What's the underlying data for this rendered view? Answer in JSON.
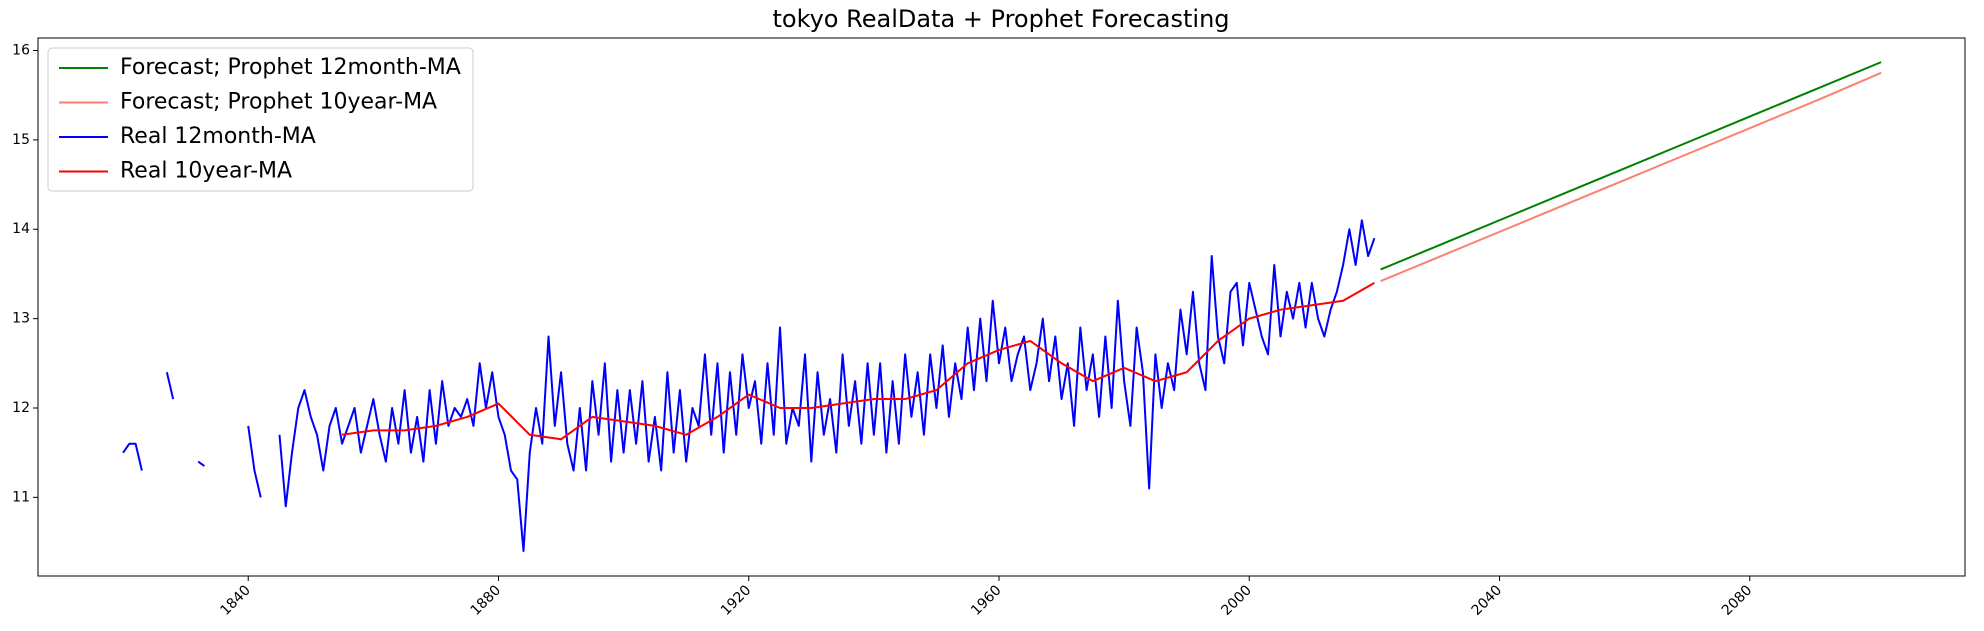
{
  "chart_data": {
    "type": "line",
    "title": "tokyo RealData + Prophet Forecasting",
    "xlim": [
      1806.4,
      2114.4
    ],
    "ylim": [
      10.12,
      16.14
    ],
    "xticks": [
      1840,
      1880,
      1920,
      1960,
      2000,
      2040,
      2080
    ],
    "yticks": [
      11,
      12,
      13,
      14,
      15,
      16
    ],
    "legend": "upper left",
    "series": [
      {
        "name": "Forecast; Prophet 12month-MA",
        "color": "#008000",
        "x": [
          2021,
          2031,
          2041,
          2051,
          2061,
          2071,
          2081,
          2091,
          2101
        ],
        "values": [
          13.55,
          13.84,
          14.13,
          14.42,
          14.71,
          15.0,
          15.29,
          15.58,
          15.87
        ]
      },
      {
        "name": "Forecast; Prophet 10year-MA",
        "color": "#fa8072",
        "x": [
          2021,
          2031,
          2041,
          2051,
          2061,
          2071,
          2081,
          2091,
          2101
        ],
        "values": [
          13.42,
          13.71,
          14.0,
          14.29,
          14.58,
          14.87,
          15.16,
          15.45,
          15.75
        ]
      },
      {
        "name": "Real 12month-MA",
        "color": "#0000ff",
        "x": [
          1820,
          1821,
          1822,
          1823,
          1824,
          1825,
          1826,
          1827,
          1828,
          1829,
          1830,
          1831,
          1832,
          1833,
          1834,
          1835,
          1836,
          1837,
          1838,
          1839,
          1840,
          1841,
          1842,
          1843,
          1844,
          1845,
          1846,
          1847,
          1848,
          1849,
          1850,
          1851,
          1852,
          1853,
          1854,
          1855,
          1856,
          1857,
          1858,
          1859,
          1860,
          1861,
          1862,
          1863,
          1864,
          1865,
          1866,
          1867,
          1868,
          1869,
          1870,
          1871,
          1872,
          1873,
          1874,
          1875,
          1876,
          1877,
          1878,
          1879,
          1880,
          1881,
          1882,
          1883,
          1884,
          1885,
          1886,
          1887,
          1888,
          1889,
          1890,
          1891,
          1892,
          1893,
          1894,
          1895,
          1896,
          1897,
          1898,
          1899,
          1900,
          1901,
          1902,
          1903,
          1904,
          1905,
          1906,
          1907,
          1908,
          1909,
          1910,
          1911,
          1912,
          1913,
          1914,
          1915,
          1916,
          1917,
          1918,
          1919,
          1920,
          1921,
          1922,
          1923,
          1924,
          1925,
          1926,
          1927,
          1928,
          1929,
          1930,
          1931,
          1932,
          1933,
          1934,
          1935,
          1936,
          1937,
          1938,
          1939,
          1940,
          1941,
          1942,
          1943,
          1944,
          1945,
          1946,
          1947,
          1948,
          1949,
          1950,
          1951,
          1952,
          1953,
          1954,
          1955,
          1956,
          1957,
          1958,
          1959,
          1960,
          1961,
          1962,
          1963,
          1964,
          1965,
          1966,
          1967,
          1968,
          1969,
          1970,
          1971,
          1972,
          1973,
          1974,
          1975,
          1976,
          1977,
          1978,
          1979,
          1980,
          1981,
          1982,
          1983,
          1984,
          1985,
          1986,
          1987,
          1988,
          1989,
          1990,
          1991,
          1992,
          1993,
          1994,
          1995,
          1996,
          1997,
          1998,
          1999,
          2000,
          2001,
          2002,
          2003,
          2004,
          2005,
          2006,
          2007,
          2008,
          2009,
          2010,
          2011,
          2012,
          2013,
          2014,
          2015,
          2016,
          2017,
          2018,
          2019,
          2020
        ],
        "values": [
          11.5,
          11.6,
          11.6,
          11.3,
          null,
          null,
          null,
          12.4,
          12.1,
          null,
          null,
          null,
          11.4,
          11.35,
          null,
          null,
          null,
          null,
          null,
          null,
          11.8,
          11.3,
          11.0,
          null,
          null,
          11.7,
          10.9,
          11.5,
          12.0,
          12.2,
          11.9,
          11.7,
          11.3,
          11.8,
          12.0,
          11.6,
          11.8,
          12.0,
          11.5,
          11.8,
          12.1,
          11.7,
          11.4,
          12.0,
          11.6,
          12.2,
          11.5,
          11.9,
          11.4,
          12.2,
          11.6,
          12.3,
          11.8,
          12.0,
          11.9,
          12.1,
          11.8,
          12.5,
          12.0,
          12.4,
          11.9,
          11.7,
          11.3,
          11.2,
          10.4,
          11.5,
          12.0,
          11.6,
          12.8,
          11.8,
          12.4,
          11.6,
          11.3,
          12.0,
          11.3,
          12.3,
          11.7,
          12.5,
          11.4,
          12.2,
          11.5,
          12.2,
          11.6,
          12.3,
          11.4,
          11.9,
          11.3,
          12.4,
          11.5,
          12.2,
          11.4,
          12.0,
          11.8,
          12.6,
          11.7,
          12.5,
          11.5,
          12.4,
          11.7,
          12.6,
          12.0,
          12.3,
          11.6,
          12.5,
          11.7,
          12.9,
          11.6,
          12.0,
          11.8,
          12.6,
          11.4,
          12.4,
          11.7,
          12.1,
          11.5,
          12.6,
          11.8,
          12.3,
          11.6,
          12.5,
          11.7,
          12.5,
          11.5,
          12.3,
          11.6,
          12.6,
          11.9,
          12.4,
          11.7,
          12.6,
          12.0,
          12.7,
          11.9,
          12.5,
          12.1,
          12.9,
          12.2,
          13.0,
          12.3,
          13.2,
          12.5,
          12.9,
          12.3,
          12.6,
          12.8,
          12.2,
          12.5,
          13.0,
          12.3,
          12.8,
          12.1,
          12.5,
          11.8,
          12.9,
          12.2,
          12.6,
          11.9,
          12.8,
          12.0,
          13.2,
          12.3,
          11.8,
          12.9,
          12.4,
          11.1,
          12.6,
          12.0,
          12.5,
          12.2,
          13.1,
          12.6,
          13.3,
          12.5,
          12.2,
          13.7,
          12.8,
          12.5,
          13.3,
          13.4,
          12.7,
          13.4,
          13.1,
          12.8,
          12.6,
          13.6,
          12.8,
          13.3,
          13.0,
          13.4,
          12.9,
          13.4,
          13.0,
          12.8,
          13.1,
          13.3,
          13.6,
          14.0,
          13.6,
          14.1,
          13.7,
          13.9
        ]
      },
      {
        "name": "Real 10year-MA",
        "color": "#ff0000",
        "x": [
          1855,
          1860,
          1865,
          1870,
          1875,
          1880,
          1885,
          1890,
          1895,
          1900,
          1905,
          1910,
          1915,
          1920,
          1925,
          1930,
          1935,
          1940,
          1945,
          1950,
          1955,
          1960,
          1965,
          1970,
          1975,
          1980,
          1985,
          1990,
          1995,
          2000,
          2005,
          2010,
          2015,
          2020
        ],
        "values": [
          11.7,
          11.75,
          11.75,
          11.8,
          11.9,
          12.05,
          11.7,
          11.65,
          11.9,
          11.85,
          11.8,
          11.7,
          11.9,
          12.15,
          12.0,
          12.0,
          12.05,
          12.1,
          12.1,
          12.2,
          12.5,
          12.65,
          12.75,
          12.5,
          12.3,
          12.45,
          12.3,
          12.4,
          12.75,
          13.0,
          13.1,
          13.15,
          13.2,
          13.4
        ]
      }
    ]
  }
}
